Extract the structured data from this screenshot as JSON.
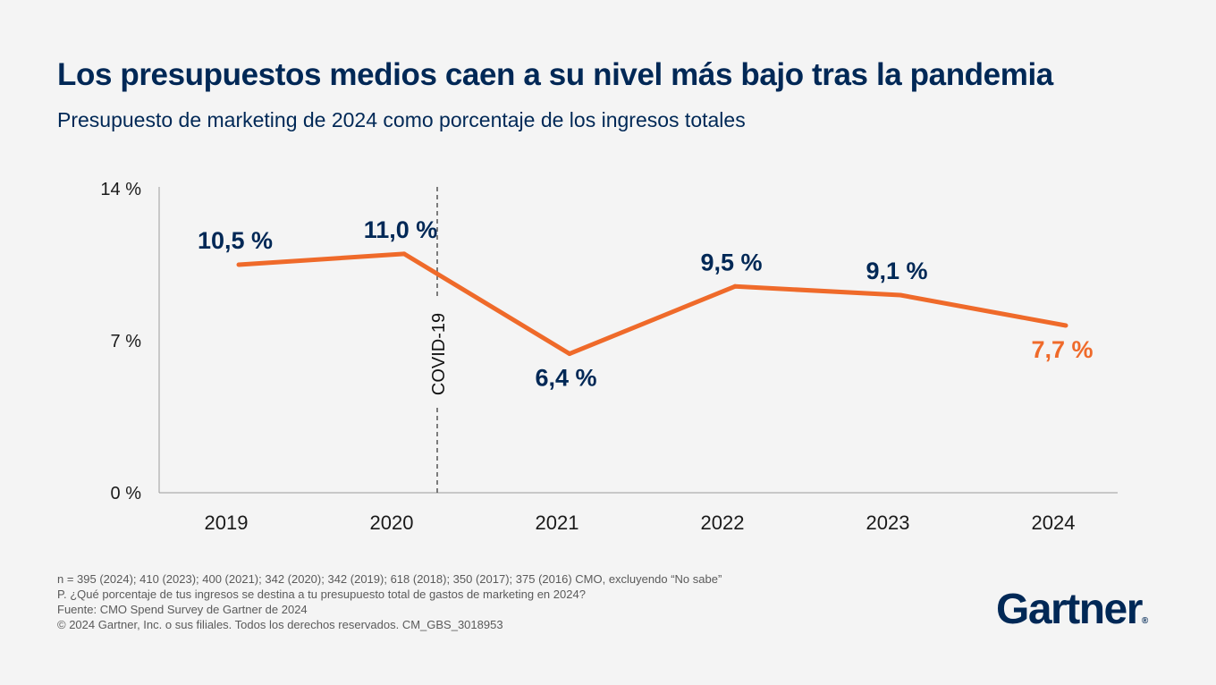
{
  "title": "Los presupuestos medios caen a su nivel más bajo tras la pandemia",
  "subtitle": "Presupuesto de marketing de 2024 como porcentaje de los ingresos totales",
  "chart_data": {
    "type": "line",
    "x": [
      "2019",
      "2020",
      "2021",
      "2022",
      "2023",
      "2024"
    ],
    "series": [
      {
        "values": [
          10.5,
          11.0,
          6.4,
          9.5,
          9.1,
          7.7
        ],
        "labels": [
          "10,5 %",
          "11,0 %",
          "6,4 %",
          "9,5 %",
          "9,1 %",
          "7,7 %"
        ]
      }
    ],
    "ylim": [
      0,
      14
    ],
    "yticks": [
      {
        "value": 0,
        "label": "0 %"
      },
      {
        "value": 7,
        "label": "7 %"
      },
      {
        "value": 14,
        "label": "14 %"
      }
    ],
    "annotation": {
      "label": "COVID-19",
      "between": [
        "2020",
        "2021"
      ]
    },
    "highlight_last_point": true,
    "grid": false,
    "colors": {
      "line": "#ef6a2a",
      "labels": "#002856",
      "highlight": "#ef6a2a",
      "axis": "#9b9b9b"
    }
  },
  "footnotes": [
    "n = 395 (2024); 410 (2023); 400 (2021); 342 (2020); 342 (2019); 618 (2018); 350 (2017); 375 (2016) CMO, excluyendo “No sabe”",
    "P. ¿Qué porcentaje de tus ingresos se destina a tu presupuesto total de gastos de marketing en 2024?",
    "Fuente: CMO Spend Survey de Gartner de 2024",
    "© 2024 Gartner, Inc. o sus filiales. Todos los derechos reservados. CM_GBS_3018953"
  ],
  "logo": {
    "text": "Gartner",
    "mark": "®"
  }
}
